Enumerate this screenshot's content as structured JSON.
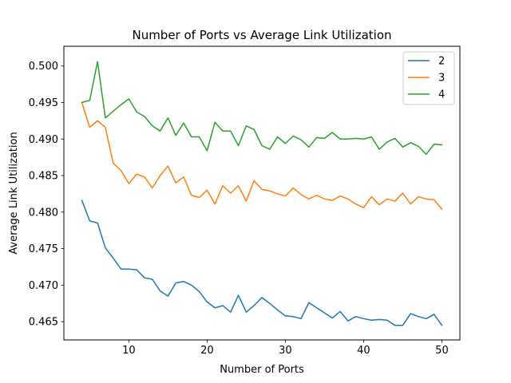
{
  "chart_data": {
    "type": "line",
    "title": "Number of Ports vs Average Link Utilization",
    "xlabel": "Number of Ports",
    "ylabel": "Average Link Utilization",
    "xlim": [
      1.7,
      52.3
    ],
    "ylim": [
      0.4625,
      0.5027
    ],
    "xticks": [
      10,
      20,
      30,
      40,
      50
    ],
    "yticks": [
      0.465,
      0.47,
      0.475,
      0.48,
      0.485,
      0.49,
      0.495,
      0.5
    ],
    "ytick_labels": [
      "0.465",
      "0.470",
      "0.475",
      "0.480",
      "0.485",
      "0.490",
      "0.495",
      "0.500"
    ],
    "grid": false,
    "legend_position": "top-right",
    "x": [
      4,
      5,
      6,
      7,
      8,
      9,
      10,
      11,
      12,
      13,
      14,
      15,
      16,
      17,
      18,
      19,
      20,
      21,
      22,
      23,
      24,
      25,
      26,
      27,
      28,
      29,
      30,
      31,
      32,
      33,
      34,
      35,
      36,
      37,
      38,
      39,
      40,
      41,
      42,
      43,
      44,
      45,
      46,
      47,
      48,
      49,
      50
    ],
    "series": [
      {
        "name": "2",
        "color": "#1f77b4",
        "values": [
          0.4816,
          0.4788,
          0.4785,
          0.4751,
          0.4737,
          0.4722,
          0.4722,
          0.4721,
          0.471,
          0.4708,
          0.4692,
          0.4685,
          0.4703,
          0.4705,
          0.47,
          0.4691,
          0.4677,
          0.4669,
          0.4672,
          0.4663,
          0.4686,
          0.4663,
          0.4672,
          0.4683,
          0.4675,
          0.4666,
          0.4658,
          0.4657,
          0.4654,
          0.4676,
          0.4669,
          0.4662,
          0.4655,
          0.4664,
          0.4651,
          0.4657,
          0.4654,
          0.4652,
          0.4653,
          0.4652,
          0.4645,
          0.4645,
          0.4661,
          0.4657,
          0.4654,
          0.466,
          0.4645
        ]
      },
      {
        "name": "3",
        "color": "#ff7f0e",
        "values": [
          0.495,
          0.4916,
          0.4925,
          0.4916,
          0.4867,
          0.4857,
          0.4839,
          0.4852,
          0.4848,
          0.4833,
          0.485,
          0.4863,
          0.484,
          0.4848,
          0.4823,
          0.482,
          0.483,
          0.4811,
          0.4836,
          0.4826,
          0.4836,
          0.4815,
          0.4843,
          0.4831,
          0.4829,
          0.4825,
          0.4822,
          0.4833,
          0.4824,
          0.4818,
          0.4823,
          0.4818,
          0.4816,
          0.4822,
          0.4818,
          0.4811,
          0.4806,
          0.4821,
          0.481,
          0.4818,
          0.4815,
          0.4826,
          0.4811,
          0.4821,
          0.4818,
          0.4817,
          0.4804
        ]
      },
      {
        "name": "4",
        "color": "#2ca02c",
        "values": [
          0.495,
          0.4953,
          0.5006,
          0.4929,
          0.4938,
          0.4947,
          0.4955,
          0.4937,
          0.4931,
          0.4918,
          0.4911,
          0.4929,
          0.4905,
          0.4922,
          0.4903,
          0.4903,
          0.4884,
          0.4923,
          0.4911,
          0.4911,
          0.4891,
          0.4918,
          0.4913,
          0.4891,
          0.4886,
          0.4903,
          0.4894,
          0.4904,
          0.4899,
          0.4889,
          0.4902,
          0.4901,
          0.4909,
          0.49,
          0.49,
          0.4901,
          0.49,
          0.4903,
          0.4886,
          0.4896,
          0.4901,
          0.4889,
          0.4895,
          0.489,
          0.4879,
          0.4893,
          0.4892
        ]
      }
    ]
  }
}
